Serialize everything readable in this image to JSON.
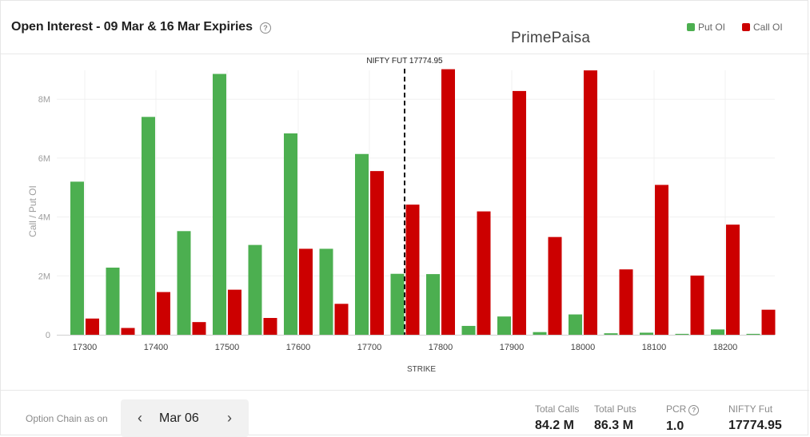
{
  "header": {
    "title": "Open Interest - 09 Mar & 16 Mar Expiries",
    "help_glyph": "?",
    "brand": "PrimePaisa"
  },
  "legend": {
    "put_label": "Put OI",
    "call_label": "Call OI"
  },
  "colors": {
    "put": "#4caf50",
    "call": "#cc0000",
    "marker": "#111111"
  },
  "chart_data": {
    "type": "bar",
    "title": "Open Interest - 09 Mar & 16 Mar Expiries",
    "xlabel": "STRIKE",
    "ylabel": "Call / Put OI",
    "ylim": [
      0,
      9200000
    ],
    "yticks": [
      0,
      2000000,
      4000000,
      6000000,
      8000000
    ],
    "ytick_labels": [
      "0",
      "2M",
      "4M",
      "6M",
      "8M"
    ],
    "grid": true,
    "legend_position": "top-right",
    "categories": [
      17300,
      17350,
      17400,
      17450,
      17500,
      17550,
      17600,
      17650,
      17700,
      17750,
      17800,
      17850,
      17900,
      17950,
      18000,
      18050,
      18100,
      18150,
      18200,
      18250
    ],
    "xtick_labels": [
      "17300",
      "17400",
      "17500",
      "17600",
      "17700",
      "17800",
      "17900",
      "18000",
      "18100",
      "18200"
    ],
    "series": [
      {
        "name": "Put OI",
        "values": [
          5200000,
          2280000,
          7400000,
          3520000,
          8860000,
          3050000,
          6840000,
          2920000,
          6140000,
          2070000,
          2060000,
          300000,
          620000,
          90000,
          690000,
          50000,
          70000,
          30000,
          180000,
          30000
        ]
      },
      {
        "name": "Call OI",
        "values": [
          550000,
          230000,
          1450000,
          430000,
          1530000,
          570000,
          2920000,
          1050000,
          5560000,
          4420000,
          9020000,
          4190000,
          8280000,
          3320000,
          8980000,
          2220000,
          5090000,
          2010000,
          3740000,
          850000
        ]
      }
    ],
    "marker": {
      "label": "NIFTY FUT 17774.95",
      "x": 17774.95
    }
  },
  "footer": {
    "option_chain_label": "Option Chain as on",
    "date": "Mar 06",
    "prev_glyph": "‹",
    "next_glyph": "›",
    "stats": {
      "total_calls_label": "Total Calls",
      "total_calls_value": "84.2 M",
      "total_puts_label": "Total Puts",
      "total_puts_value": "86.3 M",
      "pcr_label": "PCR",
      "pcr_value": "1.0",
      "nifty_fut_label": "NIFTY Fut",
      "nifty_fut_value": "17774.95"
    }
  }
}
